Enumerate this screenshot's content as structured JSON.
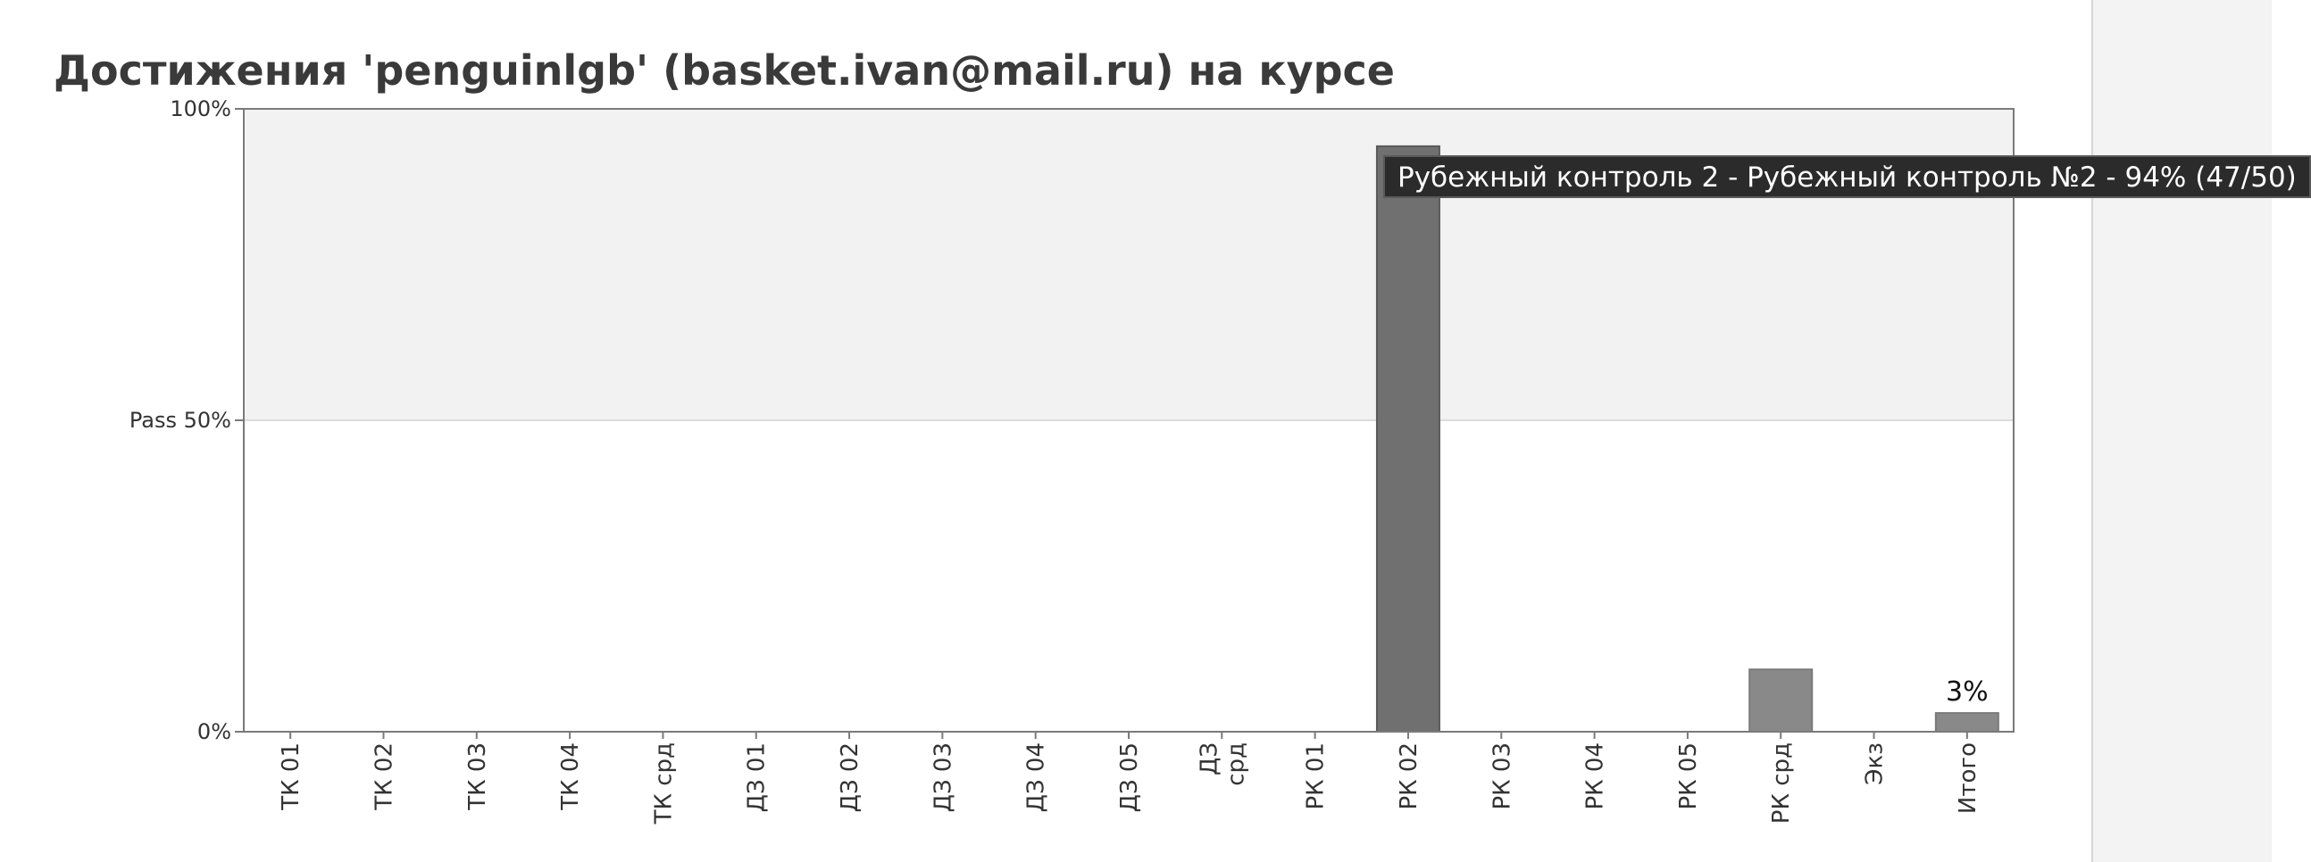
{
  "title": "Достижения 'penguinlgb' (basket.ivan@mail.ru) на курсе",
  "tooltip": "Рубежный контроль 2 - Рубежный контроль №2 - 94% (47/50)",
  "colors": {
    "bar": "#6e6e6e",
    "pass_band": "#f2f2f2",
    "axis": "#7a7a7a",
    "tooltip_bg": "#2b2b2b"
  },
  "chart_data": {
    "type": "bar",
    "title": "",
    "xlabel": "",
    "ylabel": "",
    "ylim": [
      0,
      100
    ],
    "unit": "%",
    "yticks": [
      {
        "value": 0,
        "label": "0%"
      },
      {
        "value": 50,
        "label": "Pass 50%"
      },
      {
        "value": 100,
        "label": "100%"
      }
    ],
    "pass_threshold": 50,
    "categories": [
      "ТК 01",
      "ТК 02",
      "ТК 03",
      "ТК 04",
      "ТК срд",
      "ДЗ 01",
      "ДЗ 02",
      "ДЗ 03",
      "ДЗ 04",
      "ДЗ 05",
      "ДЗ срд",
      "РК 01",
      "РК 02",
      "РК 03",
      "РК 04",
      "РК 05",
      "РК срд",
      "Экз",
      "Итого"
    ],
    "values": [
      0,
      0,
      0,
      0,
      0,
      0,
      0,
      0,
      0,
      0,
      0,
      0,
      94,
      0,
      0,
      0,
      10,
      0,
      3
    ],
    "data_labels": [
      {
        "category": "Итого",
        "text": "3%"
      }
    ],
    "highlighted": "РК 02",
    "grid": false
  }
}
